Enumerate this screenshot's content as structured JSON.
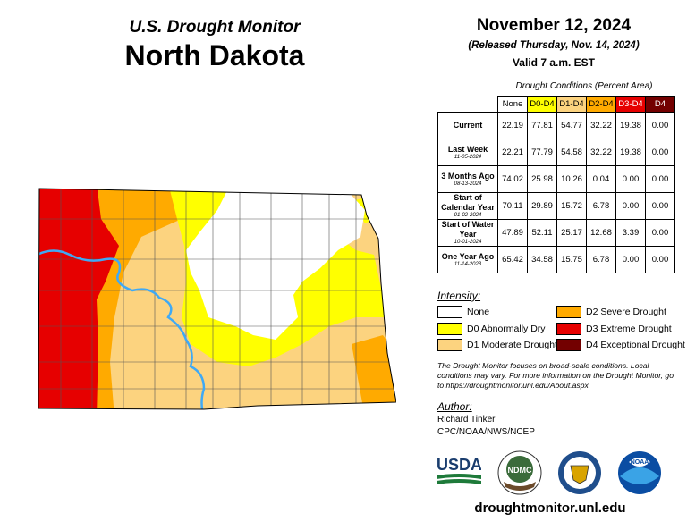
{
  "header": {
    "subtitle": "U.S. Drought Monitor",
    "state": "North Dakota",
    "date": "November 12, 2024",
    "released": "(Released Thursday, Nov. 14, 2024)",
    "valid": "Valid 7 a.m. EST"
  },
  "table": {
    "caption": "Drought Conditions (Percent Area)",
    "columns": [
      "None",
      "D0-D4",
      "D1-D4",
      "D2-D4",
      "D3-D4",
      "D4"
    ],
    "column_colors": [
      "#ffffff",
      "#ffff00",
      "#fcd37f",
      "#ffaa00",
      "#e60000",
      "#730000"
    ],
    "rows": [
      {
        "label": "Current",
        "sub": "",
        "values": [
          "22.19",
          "77.81",
          "54.77",
          "32.22",
          "19.38",
          "0.00"
        ]
      },
      {
        "label": "Last Week",
        "sub": "11-05-2024",
        "values": [
          "22.21",
          "77.79",
          "54.58",
          "32.22",
          "19.38",
          "0.00"
        ]
      },
      {
        "label": "3 Months Ago",
        "sub": "08-13-2024",
        "values": [
          "74.02",
          "25.98",
          "10.26",
          "0.04",
          "0.00",
          "0.00"
        ]
      },
      {
        "label": "Start of Calendar Year",
        "sub": "01-02-2024",
        "values": [
          "70.11",
          "29.89",
          "15.72",
          "6.78",
          "0.00",
          "0.00"
        ]
      },
      {
        "label": "Start of Water Year",
        "sub": "10-01-2024",
        "values": [
          "47.89",
          "52.11",
          "25.17",
          "12.68",
          "3.39",
          "0.00"
        ]
      },
      {
        "label": "One Year Ago",
        "sub": "11-14-2023",
        "values": [
          "65.42",
          "34.58",
          "15.75",
          "6.78",
          "0.00",
          "0.00"
        ]
      }
    ]
  },
  "legend": {
    "title": "Intensity:",
    "items": [
      {
        "label": "None",
        "color": "#ffffff"
      },
      {
        "label": "D0 Abnormally Dry",
        "color": "#ffff00"
      },
      {
        "label": "D1 Moderate Drought",
        "color": "#fcd37f"
      },
      {
        "label": "D2 Severe Drought",
        "color": "#ffaa00"
      },
      {
        "label": "D3 Extreme Drought",
        "color": "#e60000"
      },
      {
        "label": "D4 Exceptional Drought",
        "color": "#730000"
      }
    ]
  },
  "note": "The Drought Monitor focuses on broad-scale conditions. Local conditions may vary. For more information on the Drought Monitor, go to https://droughtmonitor.unl.edu/About.aspx",
  "author": {
    "title": "Author:",
    "name": "Richard Tinker",
    "org": "CPC/NOAA/NWS/NCEP"
  },
  "logos": {
    "usda": "USDA",
    "ndmc": "NDMC",
    "noaa": "NOAA"
  },
  "url": "droughtmonitor.unl.edu"
}
